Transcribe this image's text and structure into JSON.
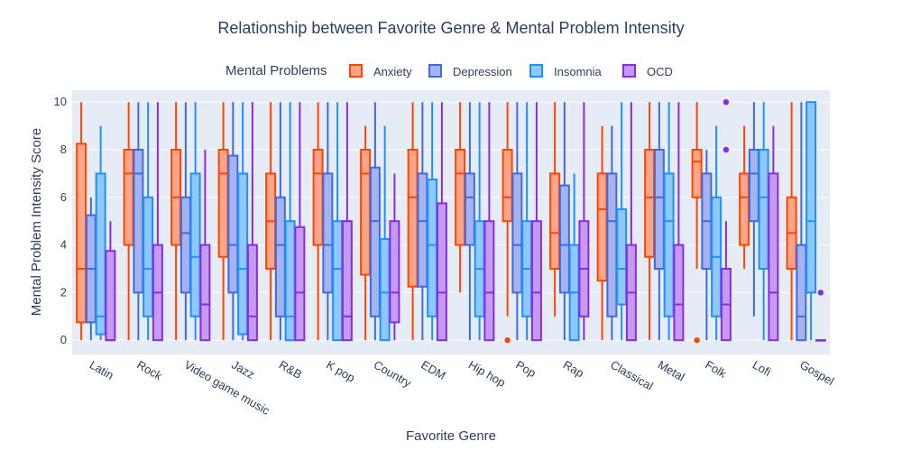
{
  "chart_data": {
    "type": "box",
    "title": "Relationship between Favorite Genre & Mental Problem Intensity",
    "xlabel": "Favorite Genre",
    "ylabel": "Mental Problem Intensity Score",
    "ylim": [
      -0.6,
      10.5
    ],
    "yticks": [
      0,
      2,
      4,
      6,
      8,
      10
    ],
    "grid": true,
    "legend_title": "Mental Problems",
    "legend_position": "top",
    "categories": [
      "Latin",
      "Rock",
      "Video game music",
      "Jazz",
      "R&B",
      "K pop",
      "Country",
      "EDM",
      "Hip hop",
      "Pop",
      "Rap",
      "Classical",
      "Metal",
      "Folk",
      "Lofi",
      "Gospel"
    ],
    "series": [
      {
        "name": "Anxiety",
        "color": "#ff4500",
        "fill": "#ffa58a",
        "boxes": [
          {
            "min": 0,
            "q1": 0.75,
            "median": 3,
            "q3": 8.25,
            "max": 10,
            "outliers": []
          },
          {
            "min": 0,
            "q1": 4,
            "median": 7,
            "q3": 8,
            "max": 10,
            "outliers": []
          },
          {
            "min": 0,
            "q1": 4,
            "median": 6,
            "q3": 8,
            "max": 10,
            "outliers": []
          },
          {
            "min": 0,
            "q1": 3.5,
            "median": 7,
            "q3": 8,
            "max": 10,
            "outliers": []
          },
          {
            "min": 0,
            "q1": 3,
            "median": 5,
            "q3": 7,
            "max": 10,
            "outliers": []
          },
          {
            "min": 0,
            "q1": 4,
            "median": 7,
            "q3": 8,
            "max": 10,
            "outliers": []
          },
          {
            "min": 0,
            "q1": 2.75,
            "median": 7,
            "q3": 8,
            "max": 9,
            "outliers": []
          },
          {
            "min": 0,
            "q1": 2.25,
            "median": 6,
            "q3": 8,
            "max": 10,
            "outliers": []
          },
          {
            "min": 2,
            "q1": 4,
            "median": 7,
            "q3": 8,
            "max": 10,
            "outliers": []
          },
          {
            "min": 1,
            "q1": 5,
            "median": 6,
            "q3": 8,
            "max": 10,
            "outliers": [
              0
            ]
          },
          {
            "min": 1,
            "q1": 3,
            "median": 4.5,
            "q3": 7,
            "max": 10,
            "outliers": []
          },
          {
            "min": 0,
            "q1": 2.5,
            "median": 5.5,
            "q3": 7,
            "max": 9,
            "outliers": []
          },
          {
            "min": 0,
            "q1": 3.5,
            "median": 6,
            "q3": 8,
            "max": 10,
            "outliers": []
          },
          {
            "min": 3,
            "q1": 6,
            "median": 7.5,
            "q3": 8,
            "max": 10,
            "outliers": [
              0
            ]
          },
          {
            "min": 3,
            "q1": 4,
            "median": 6,
            "q3": 7,
            "max": 9,
            "outliers": []
          },
          {
            "min": 0,
            "q1": 3,
            "median": 4.5,
            "q3": 6,
            "max": 10,
            "outliers": []
          }
        ]
      },
      {
        "name": "Depression",
        "color": "#4169e1",
        "fill": "#a5b4ef",
        "boxes": [
          {
            "min": 0,
            "q1": 0.75,
            "median": 3,
            "q3": 5.25,
            "max": 6,
            "outliers": []
          },
          {
            "min": 0,
            "q1": 2,
            "median": 7,
            "q3": 8,
            "max": 10,
            "outliers": []
          },
          {
            "min": 0,
            "q1": 2,
            "median": 4.5,
            "q3": 6,
            "max": 10,
            "outliers": []
          },
          {
            "min": 0,
            "q1": 2,
            "median": 4,
            "q3": 7.75,
            "max": 10,
            "outliers": []
          },
          {
            "min": 0,
            "q1": 1,
            "median": 4,
            "q3": 6,
            "max": 10,
            "outliers": []
          },
          {
            "min": 0,
            "q1": 2,
            "median": 4,
            "q3": 7,
            "max": 10,
            "outliers": []
          },
          {
            "min": 0,
            "q1": 1,
            "median": 5,
            "q3": 7.25,
            "max": 10,
            "outliers": []
          },
          {
            "min": 0,
            "q1": 2.25,
            "median": 5,
            "q3": 7,
            "max": 10,
            "outliers": []
          },
          {
            "min": 0,
            "q1": 4,
            "median": 6,
            "q3": 7,
            "max": 10,
            "outliers": []
          },
          {
            "min": 0,
            "q1": 2,
            "median": 4,
            "q3": 7,
            "max": 10,
            "outliers": []
          },
          {
            "min": 0,
            "q1": 2,
            "median": 4,
            "q3": 6.5,
            "max": 10,
            "outliers": []
          },
          {
            "min": 0,
            "q1": 1,
            "median": 5,
            "q3": 7,
            "max": 9,
            "outliers": []
          },
          {
            "min": 0,
            "q1": 3,
            "median": 6,
            "q3": 8,
            "max": 10,
            "outliers": []
          },
          {
            "min": 0,
            "q1": 3,
            "median": 5,
            "q3": 7,
            "max": 8,
            "outliers": []
          },
          {
            "min": 1,
            "q1": 5,
            "median": 7,
            "q3": 8,
            "max": 10,
            "outliers": []
          },
          {
            "min": 0,
            "q1": 0,
            "median": 1,
            "q3": 4,
            "max": 10,
            "outliers": []
          }
        ]
      },
      {
        "name": "Insomnia",
        "color": "#1e90ff",
        "fill": "#8ec8ff",
        "boxes": [
          {
            "min": 0,
            "q1": 0.25,
            "median": 1,
            "q3": 7,
            "max": 9,
            "outliers": []
          },
          {
            "min": 0,
            "q1": 1,
            "median": 3,
            "q3": 6,
            "max": 10,
            "outliers": []
          },
          {
            "min": 0,
            "q1": 1,
            "median": 3.5,
            "q3": 7,
            "max": 10,
            "outliers": []
          },
          {
            "min": 0,
            "q1": 0.25,
            "median": 3,
            "q3": 7,
            "max": 10,
            "outliers": []
          },
          {
            "min": 0,
            "q1": 0,
            "median": 1,
            "q3": 5,
            "max": 10,
            "outliers": []
          },
          {
            "min": 0,
            "q1": 0,
            "median": 3,
            "q3": 5,
            "max": 10,
            "outliers": []
          },
          {
            "min": 0,
            "q1": 0,
            "median": 2,
            "q3": 4.25,
            "max": 9,
            "outliers": []
          },
          {
            "min": 0,
            "q1": 1,
            "median": 4,
            "q3": 6.75,
            "max": 10,
            "outliers": []
          },
          {
            "min": 0,
            "q1": 1,
            "median": 3,
            "q3": 5,
            "max": 10,
            "outliers": []
          },
          {
            "min": 0,
            "q1": 1,
            "median": 3,
            "q3": 5,
            "max": 10,
            "outliers": []
          },
          {
            "min": 0,
            "q1": 0,
            "median": 2,
            "q3": 4,
            "max": 7,
            "outliers": []
          },
          {
            "min": 0,
            "q1": 1.5,
            "median": 3,
            "q3": 5.5,
            "max": 10,
            "outliers": []
          },
          {
            "min": 0,
            "q1": 1,
            "median": 5,
            "q3": 7,
            "max": 10,
            "outliers": []
          },
          {
            "min": 0,
            "q1": 1,
            "median": 3.5,
            "q3": 6,
            "max": 9,
            "outliers": []
          },
          {
            "min": 0,
            "q1": 3,
            "median": 6,
            "q3": 8,
            "max": 10,
            "outliers": []
          },
          {
            "min": 0,
            "q1": 2,
            "median": 5,
            "q3": 10,
            "max": 10,
            "outliers": []
          }
        ]
      },
      {
        "name": "OCD",
        "color": "#8a2be2",
        "fill": "#c59bf1",
        "boxes": [
          {
            "min": 0,
            "q1": 0,
            "median": 0,
            "q3": 3.75,
            "max": 5,
            "outliers": []
          },
          {
            "min": 0,
            "q1": 0,
            "median": 2,
            "q3": 4,
            "max": 10,
            "outliers": []
          },
          {
            "min": 0,
            "q1": 0,
            "median": 1.5,
            "q3": 4,
            "max": 8,
            "outliers": []
          },
          {
            "min": 0,
            "q1": 0,
            "median": 1,
            "q3": 4,
            "max": 10,
            "outliers": []
          },
          {
            "min": 0,
            "q1": 0,
            "median": 2,
            "q3": 4.75,
            "max": 10,
            "outliers": []
          },
          {
            "min": 0,
            "q1": 0,
            "median": 1,
            "q3": 5,
            "max": 10,
            "outliers": []
          },
          {
            "min": 0,
            "q1": 0.75,
            "median": 2,
            "q3": 5,
            "max": 7,
            "outliers": []
          },
          {
            "min": 0,
            "q1": 0,
            "median": 2,
            "q3": 5.75,
            "max": 10,
            "outliers": []
          },
          {
            "min": 0,
            "q1": 0,
            "median": 2,
            "q3": 5,
            "max": 10,
            "outliers": []
          },
          {
            "min": 0,
            "q1": 0,
            "median": 2,
            "q3": 5,
            "max": 10,
            "outliers": []
          },
          {
            "min": 0,
            "q1": 1,
            "median": 3,
            "q3": 5,
            "max": 10,
            "outliers": []
          },
          {
            "min": 0,
            "q1": 0,
            "median": 2,
            "q3": 4,
            "max": 10,
            "outliers": []
          },
          {
            "min": 0,
            "q1": 0,
            "median": 1.5,
            "q3": 4,
            "max": 10,
            "outliers": []
          },
          {
            "min": 0,
            "q1": 0,
            "median": 1.5,
            "q3": 3,
            "max": 5,
            "outliers": [
              8,
              10
            ]
          },
          {
            "min": 0,
            "q1": 0,
            "median": 2,
            "q3": 7,
            "max": 9,
            "outliers": []
          },
          {
            "min": 0,
            "q1": 0,
            "median": 0,
            "q3": 0,
            "max": 0,
            "outliers": [
              2
            ]
          }
        ]
      }
    ]
  }
}
